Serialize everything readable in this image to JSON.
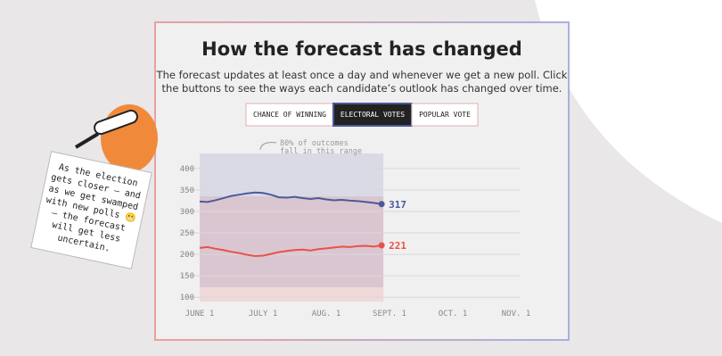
{
  "header": {
    "title": "How the forecast has changed",
    "subtitle": [
      "The forecast updates at least once a day and whenever we get a new poll. Click",
      "the buttons to see the ways each candidate’s outlook has changed over time."
    ]
  },
  "buttons": [
    "CHANCE OF WINNING",
    "ELECTORAL VOTES",
    "POPULAR VOTE"
  ],
  "note": [
    "As the election",
    "gets closer — and",
    "as we get swamped",
    "with new polls 😬",
    "— the forecast",
    "will get less",
    "uncertain."
  ],
  "chart_data": {
    "type": "line",
    "annotation": [
      "80% of outcomes",
      "fall in this range"
    ],
    "categories": [
      "JUNE 1",
      null,
      null,
      null,
      null,
      null,
      null,
      null,
      "JULY 1",
      null,
      null,
      null,
      null,
      null,
      null,
      null,
      "AUG. 1",
      null,
      null,
      null,
      null,
      null,
      null,
      null,
      "SEPT. 1",
      null,
      null,
      null,
      null,
      null,
      null,
      null,
      "OCT. 1",
      null,
      null,
      null,
      null,
      null,
      null,
      null,
      "NOV. 1"
    ],
    "series": [
      {
        "color": "#4a5a9c",
        "values": [
          323,
          322,
          326,
          331,
          336,
          339,
          342,
          344,
          343,
          339,
          333,
          332,
          334,
          331,
          329,
          331,
          328,
          326,
          327,
          325,
          324,
          322,
          320,
          317,
          null,
          null,
          null,
          null,
          null,
          null,
          null,
          null,
          null,
          null,
          null,
          null,
          null,
          null,
          null,
          null,
          null
        ],
        "value_label": "317"
      },
      {
        "color": "#e8524a",
        "values": [
          215,
          217,
          213,
          210,
          206,
          203,
          199,
          196,
          197,
          201,
          205,
          208,
          210,
          211,
          209,
          212,
          214,
          216,
          218,
          217,
          219,
          220,
          218,
          221,
          null,
          null,
          null,
          null,
          null,
          null,
          null,
          null,
          null,
          null,
          null,
          null,
          null,
          null,
          null,
          null,
          null
        ],
        "value_label": "221"
      }
    ],
    "ylim": [
      90,
      435
    ],
    "yticks": [
      100,
      150,
      200,
      250,
      300,
      350,
      400
    ],
    "grid": true
  }
}
